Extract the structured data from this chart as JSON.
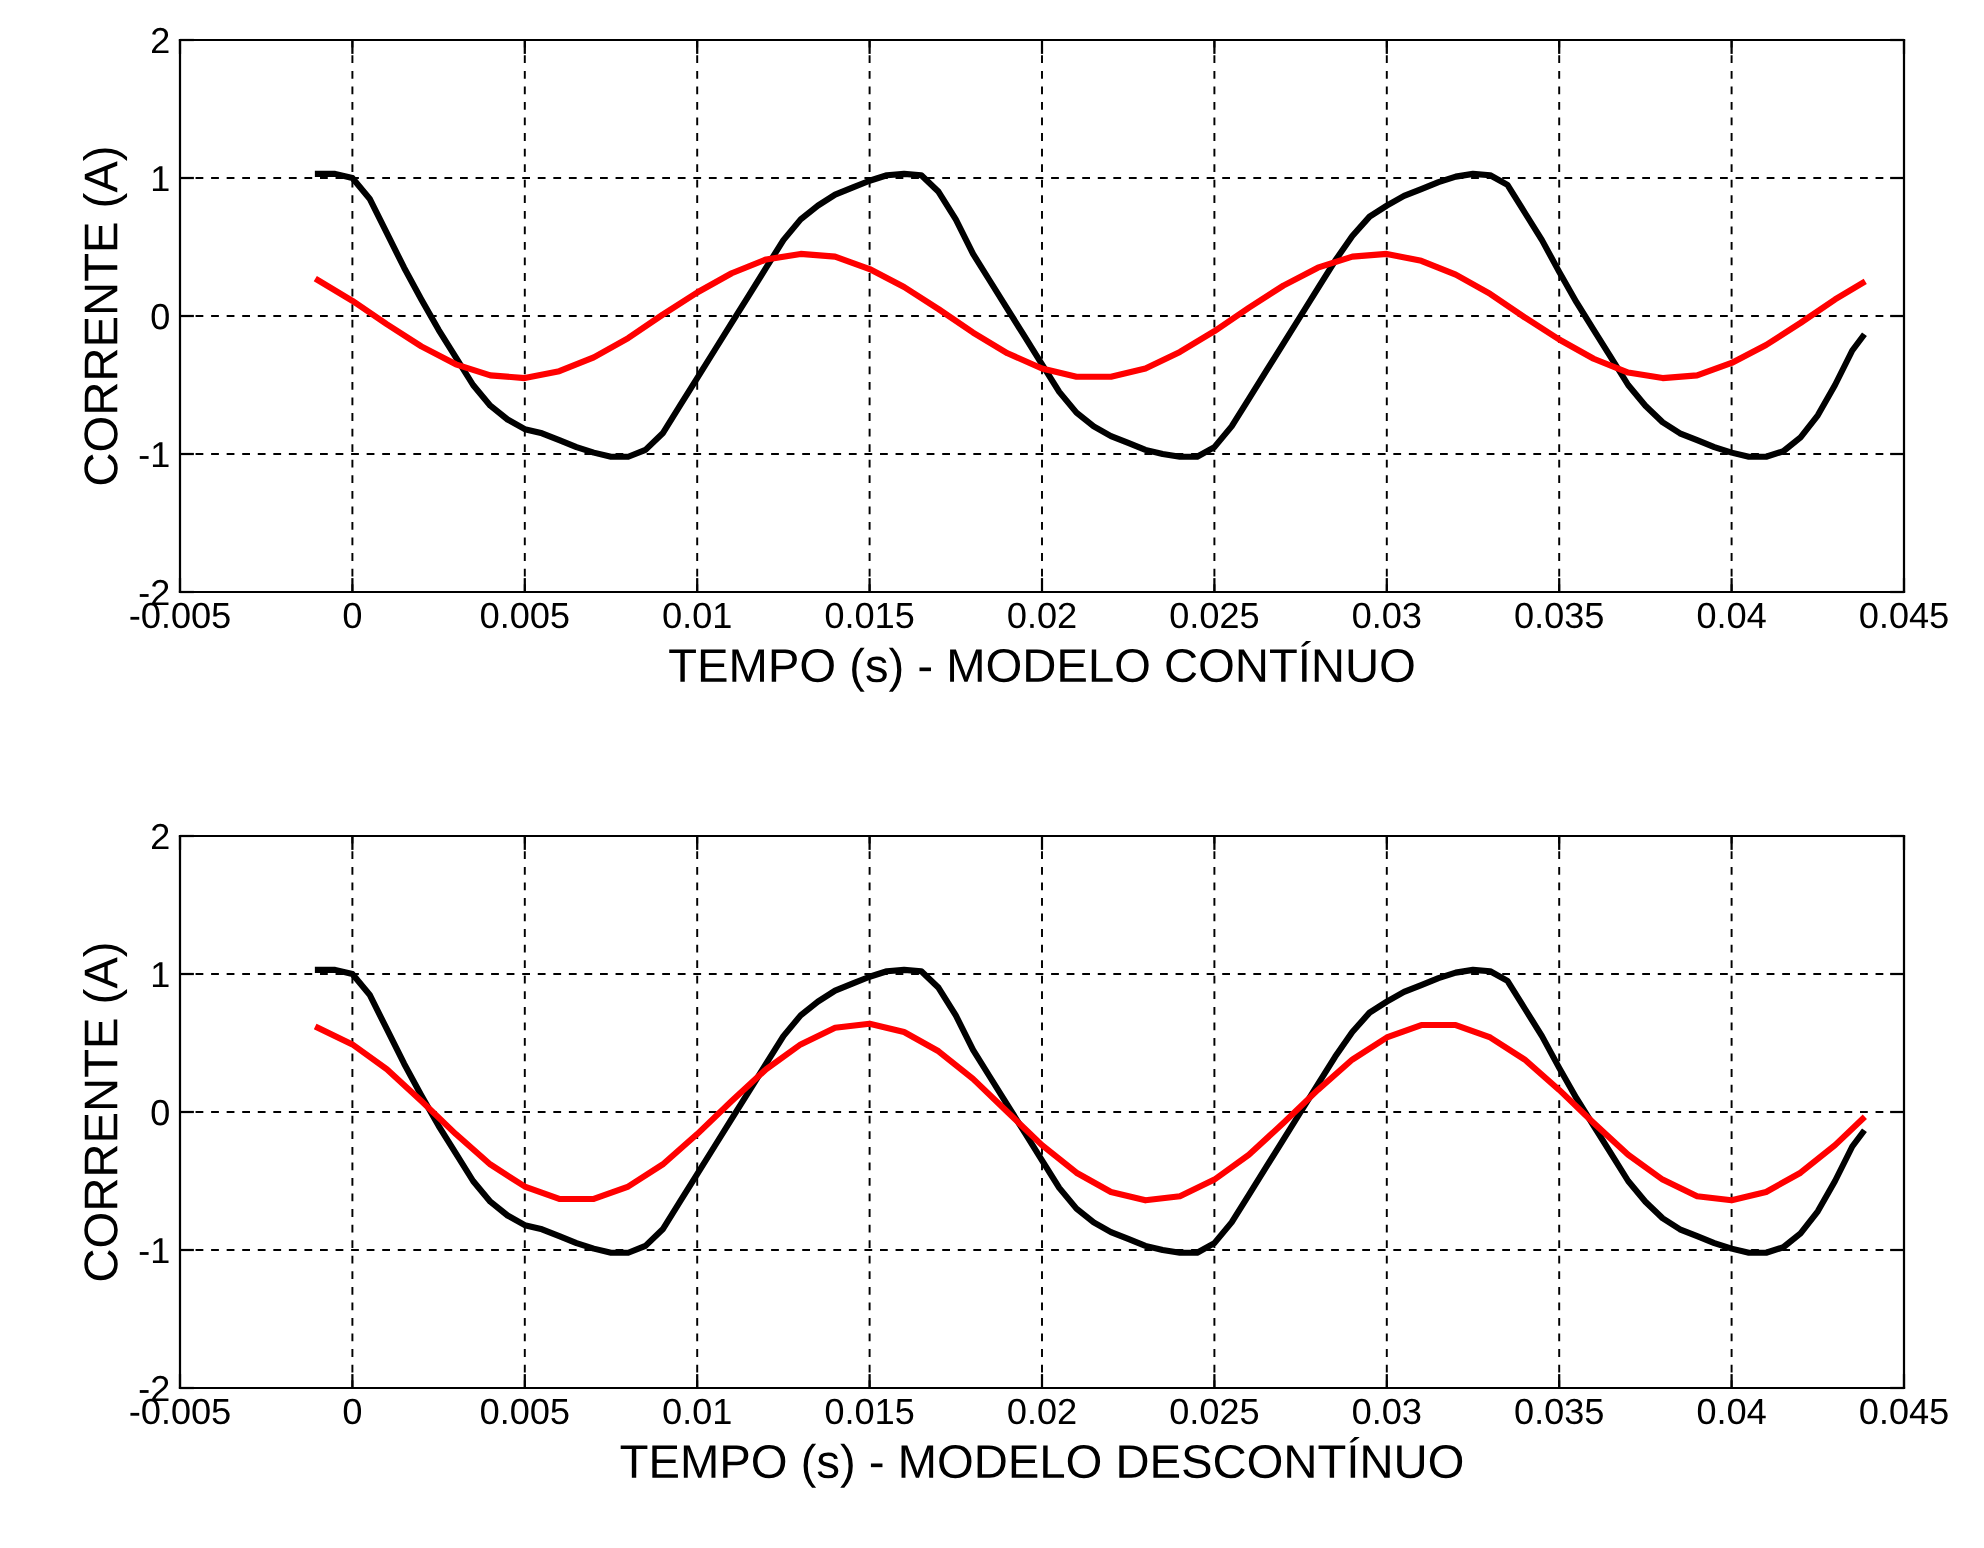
{
  "chart_data": [
    {
      "type": "line",
      "xlabel": "TEMPO (s) - MODELO CONTÍNUO",
      "ylabel": "CORRENTE (A)",
      "xlim": [
        -0.005,
        0.045
      ],
      "xticks": [
        -0.005,
        0,
        0.005,
        0.01,
        0.015,
        0.02,
        0.025,
        0.03,
        0.035,
        0.04,
        0.045
      ],
      "ylim": [
        -2,
        2
      ],
      "yticks": [
        -2,
        -1,
        0,
        1,
        2
      ],
      "grid": true,
      "line_style": "solid",
      "marker": "none",
      "series": [
        {
          "color": "#000000",
          "x": [
            -0.001,
            -0.0005,
            0,
            0.0005,
            0.001,
            0.0015,
            0.002,
            0.0025,
            0.003,
            0.0035,
            0.004,
            0.0045,
            0.005,
            0.0055,
            0.006,
            0.0065,
            0.007,
            0.0075,
            0.008,
            0.0085,
            0.009,
            0.0095,
            0.01,
            0.0105,
            0.011,
            0.0115,
            0.012,
            0.0125,
            0.013,
            0.0135,
            0.014,
            0.0145,
            0.015,
            0.0155,
            0.016,
            0.0165,
            0.017,
            0.0175,
            0.018,
            0.0185,
            0.019,
            0.0195,
            0.02,
            0.0205,
            0.021,
            0.0215,
            0.022,
            0.0225,
            0.023,
            0.0235,
            0.024,
            0.0245,
            0.025,
            0.0255,
            0.026,
            0.0265,
            0.027,
            0.0275,
            0.028,
            0.0285,
            0.029,
            0.0295,
            0.03,
            0.0305,
            0.031,
            0.0315,
            0.032,
            0.0325,
            0.033,
            0.0335,
            0.034,
            0.0345,
            0.035,
            0.0355,
            0.036,
            0.0365,
            0.037,
            0.0375,
            0.038,
            0.0385,
            0.039,
            0.0395,
            0.04,
            0.0405,
            0.041,
            0.0415,
            0.042,
            0.0425,
            0.043,
            0.0435,
            0.0438
          ],
          "values": [
            1.03,
            1.03,
            1.0,
            0.85,
            0.6,
            0.35,
            0.12,
            -0.1,
            -0.3,
            -0.5,
            -0.65,
            -0.75,
            -0.82,
            -0.85,
            -0.9,
            -0.95,
            -0.99,
            -1.02,
            -1.02,
            -0.97,
            -0.85,
            -0.65,
            -0.45,
            -0.25,
            -0.05,
            0.15,
            0.35,
            0.55,
            0.7,
            0.8,
            0.88,
            0.93,
            0.98,
            1.02,
            1.03,
            1.02,
            0.9,
            0.7,
            0.45,
            0.25,
            0.05,
            -0.15,
            -0.35,
            -0.55,
            -0.7,
            -0.8,
            -0.87,
            -0.92,
            -0.97,
            -1.0,
            -1.02,
            -1.02,
            -0.95,
            -0.8,
            -0.6,
            -0.4,
            -0.2,
            0.0,
            0.2,
            0.4,
            0.58,
            0.72,
            0.8,
            0.87,
            0.92,
            0.97,
            1.01,
            1.03,
            1.02,
            0.95,
            0.75,
            0.55,
            0.32,
            0.1,
            -0.1,
            -0.3,
            -0.5,
            -0.65,
            -0.77,
            -0.85,
            -0.9,
            -0.95,
            -0.99,
            -1.02,
            -1.02,
            -0.98,
            -0.88,
            -0.72,
            -0.5,
            -0.25,
            -0.15
          ]
        },
        {
          "color": "#ff0000",
          "x": [
            -0.001,
            0,
            0.001,
            0.002,
            0.003,
            0.004,
            0.005,
            0.006,
            0.007,
            0.008,
            0.009,
            0.01,
            0.011,
            0.012,
            0.013,
            0.014,
            0.015,
            0.016,
            0.017,
            0.018,
            0.019,
            0.02,
            0.021,
            0.022,
            0.023,
            0.024,
            0.025,
            0.026,
            0.027,
            0.028,
            0.029,
            0.03,
            0.031,
            0.032,
            0.033,
            0.034,
            0.035,
            0.036,
            0.037,
            0.038,
            0.039,
            0.04,
            0.041,
            0.042,
            0.043,
            0.0438
          ],
          "values": [
            0.26,
            0.11,
            -0.06,
            -0.22,
            -0.35,
            -0.43,
            -0.45,
            -0.4,
            -0.3,
            -0.16,
            0.01,
            0.17,
            0.31,
            0.41,
            0.45,
            0.43,
            0.34,
            0.21,
            0.05,
            -0.12,
            -0.27,
            -0.38,
            -0.44,
            -0.44,
            -0.38,
            -0.26,
            -0.11,
            0.06,
            0.22,
            0.35,
            0.43,
            0.45,
            0.4,
            0.3,
            0.16,
            -0.01,
            -0.17,
            -0.31,
            -0.41,
            -0.45,
            -0.43,
            -0.34,
            -0.21,
            -0.05,
            0.12,
            0.24
          ]
        }
      ]
    },
    {
      "type": "line",
      "xlabel": "TEMPO (s) - MODELO DESCONTÍNUO",
      "ylabel": "CORRENTE (A)",
      "xlim": [
        -0.005,
        0.045
      ],
      "xticks": [
        -0.005,
        0,
        0.005,
        0.01,
        0.015,
        0.02,
        0.025,
        0.03,
        0.035,
        0.04,
        0.045
      ],
      "ylim": [
        -2,
        2
      ],
      "yticks": [
        -2,
        -1,
        0,
        1,
        2
      ],
      "grid": true,
      "line_style": "solid",
      "marker": "none",
      "series": [
        {
          "color": "#000000",
          "x": [
            -0.001,
            -0.0005,
            0,
            0.0005,
            0.001,
            0.0015,
            0.002,
            0.0025,
            0.003,
            0.0035,
            0.004,
            0.0045,
            0.005,
            0.0055,
            0.006,
            0.0065,
            0.007,
            0.0075,
            0.008,
            0.0085,
            0.009,
            0.0095,
            0.01,
            0.0105,
            0.011,
            0.0115,
            0.012,
            0.0125,
            0.013,
            0.0135,
            0.014,
            0.0145,
            0.015,
            0.0155,
            0.016,
            0.0165,
            0.017,
            0.0175,
            0.018,
            0.0185,
            0.019,
            0.0195,
            0.02,
            0.0205,
            0.021,
            0.0215,
            0.022,
            0.0225,
            0.023,
            0.0235,
            0.024,
            0.0245,
            0.025,
            0.0255,
            0.026,
            0.0265,
            0.027,
            0.0275,
            0.028,
            0.0285,
            0.029,
            0.0295,
            0.03,
            0.0305,
            0.031,
            0.0315,
            0.032,
            0.0325,
            0.033,
            0.0335,
            0.034,
            0.0345,
            0.035,
            0.0355,
            0.036,
            0.0365,
            0.037,
            0.0375,
            0.038,
            0.0385,
            0.039,
            0.0395,
            0.04,
            0.0405,
            0.041,
            0.0415,
            0.042,
            0.0425,
            0.043,
            0.0435,
            0.0438
          ],
          "values": [
            1.03,
            1.03,
            1.0,
            0.85,
            0.6,
            0.35,
            0.12,
            -0.1,
            -0.3,
            -0.5,
            -0.65,
            -0.75,
            -0.82,
            -0.85,
            -0.9,
            -0.95,
            -0.99,
            -1.02,
            -1.02,
            -0.97,
            -0.85,
            -0.65,
            -0.45,
            -0.25,
            -0.05,
            0.15,
            0.35,
            0.55,
            0.7,
            0.8,
            0.88,
            0.93,
            0.98,
            1.02,
            1.03,
            1.02,
            0.9,
            0.7,
            0.45,
            0.25,
            0.05,
            -0.15,
            -0.35,
            -0.55,
            -0.7,
            -0.8,
            -0.87,
            -0.92,
            -0.97,
            -1.0,
            -1.02,
            -1.02,
            -0.95,
            -0.8,
            -0.6,
            -0.4,
            -0.2,
            0.0,
            0.2,
            0.4,
            0.58,
            0.72,
            0.8,
            0.87,
            0.92,
            0.97,
            1.01,
            1.03,
            1.02,
            0.95,
            0.75,
            0.55,
            0.32,
            0.1,
            -0.1,
            -0.3,
            -0.5,
            -0.65,
            -0.77,
            -0.85,
            -0.9,
            -0.95,
            -0.99,
            -1.02,
            -1.02,
            -0.98,
            -0.88,
            -0.72,
            -0.5,
            -0.25,
            -0.15
          ]
        },
        {
          "color": "#ff0000",
          "x": [
            -0.001,
            0,
            0.001,
            0.002,
            0.003,
            0.004,
            0.005,
            0.006,
            0.007,
            0.008,
            0.009,
            0.01,
            0.011,
            0.012,
            0.013,
            0.014,
            0.015,
            0.016,
            0.017,
            0.018,
            0.019,
            0.02,
            0.021,
            0.022,
            0.023,
            0.024,
            0.025,
            0.026,
            0.027,
            0.028,
            0.029,
            0.03,
            0.031,
            0.032,
            0.033,
            0.034,
            0.035,
            0.036,
            0.037,
            0.038,
            0.039,
            0.04,
            0.041,
            0.042,
            0.043,
            0.0438
          ],
          "values": [
            0.61,
            0.49,
            0.31,
            0.08,
            -0.16,
            -0.38,
            -0.54,
            -0.63,
            -0.63,
            -0.54,
            -0.38,
            -0.16,
            0.08,
            0.31,
            0.49,
            0.61,
            0.64,
            0.58,
            0.44,
            0.24,
            0.0,
            -0.24,
            -0.44,
            -0.58,
            -0.64,
            -0.61,
            -0.49,
            -0.31,
            -0.08,
            0.16,
            0.38,
            0.54,
            0.63,
            0.63,
            0.54,
            0.38,
            0.16,
            -0.08,
            -0.31,
            -0.49,
            -0.61,
            -0.64,
            -0.58,
            -0.44,
            -0.24,
            -0.05
          ]
        }
      ]
    }
  ]
}
